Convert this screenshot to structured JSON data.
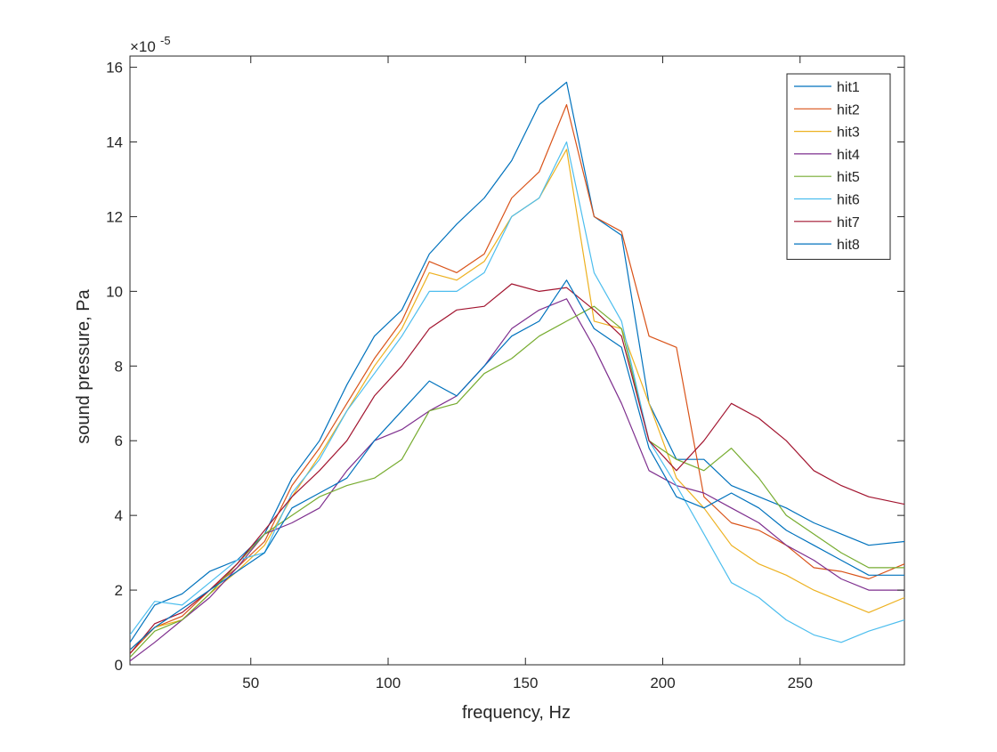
{
  "chart_data": {
    "type": "line",
    "title": "",
    "xlabel": "frequency, Hz",
    "ylabel": "sound pressure, Pa",
    "y_exponent_label": "×10",
    "y_exponent": "-5",
    "xlim": [
      6,
      288
    ],
    "ylim": [
      0,
      16.3
    ],
    "y_scale_factor": 1e-05,
    "xticks": [
      50,
      100,
      150,
      200,
      250
    ],
    "yticks": [
      0,
      2,
      4,
      6,
      8,
      10,
      12,
      14,
      16
    ],
    "grid": false,
    "legend_position": "top-right",
    "x": [
      6,
      15,
      25,
      35,
      45,
      55,
      65,
      75,
      85,
      95,
      105,
      115,
      125,
      135,
      145,
      155,
      165,
      175,
      185,
      195,
      205,
      215,
      225,
      235,
      245,
      255,
      265,
      275,
      288
    ],
    "series": [
      {
        "name": "hit1",
        "color": "#0072BD",
        "values": [
          0.6,
          1.6,
          1.9,
          2.5,
          2.8,
          3.5,
          5.0,
          6.0,
          7.5,
          8.8,
          9.5,
          11.0,
          11.8,
          12.5,
          13.5,
          15.0,
          15.6,
          12.0,
          11.5,
          7.0,
          5.5,
          5.5,
          4.8,
          4.5,
          4.2,
          3.8,
          3.5,
          3.2,
          3.3
        ]
      },
      {
        "name": "hit2",
        "color": "#D95319",
        "values": [
          0.3,
          1.0,
          1.3,
          2.0,
          2.6,
          3.3,
          4.8,
          5.8,
          7.0,
          8.2,
          9.2,
          10.8,
          10.5,
          11.0,
          12.5,
          13.2,
          15.0,
          12.0,
          11.6,
          8.8,
          8.5,
          4.5,
          3.8,
          3.6,
          3.2,
          2.6,
          2.5,
          2.3,
          2.7
        ]
      },
      {
        "name": "hit3",
        "color": "#EDB120",
        "values": [
          0.4,
          1.0,
          1.2,
          1.9,
          2.5,
          3.2,
          4.5,
          5.6,
          6.8,
          8.0,
          9.0,
          10.5,
          10.3,
          10.8,
          12.0,
          12.5,
          13.8,
          9.2,
          9.0,
          7.0,
          5.0,
          4.2,
          3.2,
          2.7,
          2.4,
          2.0,
          1.7,
          1.4,
          1.8
        ]
      },
      {
        "name": "hit4",
        "color": "#7E2F8E",
        "values": [
          0.1,
          0.6,
          1.2,
          1.8,
          2.6,
          3.5,
          3.8,
          4.2,
          5.2,
          6.0,
          6.3,
          6.8,
          7.2,
          8.0,
          9.0,
          9.5,
          9.8,
          8.5,
          7.0,
          5.2,
          4.8,
          4.6,
          4.2,
          3.8,
          3.2,
          2.8,
          2.3,
          2.0,
          2.0
        ]
      },
      {
        "name": "hit5",
        "color": "#77AC30",
        "values": [
          0.2,
          0.9,
          1.2,
          1.9,
          2.7,
          3.5,
          4.0,
          4.5,
          4.8,
          5.0,
          5.5,
          6.8,
          7.0,
          7.8,
          8.2,
          8.8,
          9.2,
          9.6,
          9.0,
          6.0,
          5.5,
          5.2,
          5.8,
          5.0,
          4.0,
          3.5,
          3.0,
          2.6,
          2.6
        ]
      },
      {
        "name": "hit6",
        "color": "#4DBEEE",
        "values": [
          0.8,
          1.7,
          1.6,
          2.2,
          2.8,
          3.0,
          4.6,
          5.5,
          6.8,
          7.8,
          8.8,
          10.0,
          10.0,
          10.5,
          12.0,
          12.5,
          14.0,
          10.5,
          9.2,
          6.0,
          4.8,
          3.5,
          2.2,
          1.8,
          1.2,
          0.8,
          0.6,
          0.9,
          1.2
        ]
      },
      {
        "name": "hit7",
        "color": "#A2142F",
        "values": [
          0.3,
          1.1,
          1.4,
          2.0,
          2.7,
          3.6,
          4.5,
          5.2,
          6.0,
          7.2,
          8.0,
          9.0,
          9.5,
          9.6,
          10.2,
          10.0,
          10.1,
          9.5,
          8.8,
          6.0,
          5.2,
          6.0,
          7.0,
          6.6,
          6.0,
          5.2,
          4.8,
          4.5,
          4.3
        ]
      },
      {
        "name": "hit8",
        "color": "#0072BD",
        "values": [
          0.4,
          1.0,
          1.5,
          2.0,
          2.5,
          3.0,
          4.2,
          4.6,
          5.0,
          6.0,
          6.8,
          7.6,
          7.2,
          8.0,
          8.8,
          9.2,
          10.3,
          9.0,
          8.5,
          5.8,
          4.5,
          4.2,
          4.6,
          4.2,
          3.6,
          3.2,
          2.8,
          2.4,
          2.4
        ]
      }
    ]
  }
}
